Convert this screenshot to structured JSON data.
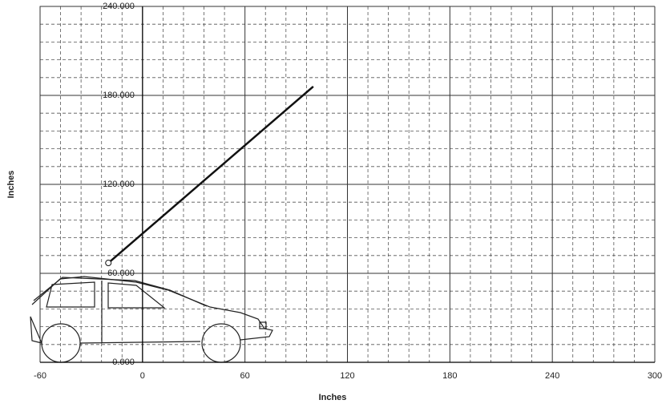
{
  "chart_data": {
    "type": "line",
    "xlabel": "Inches",
    "ylabel": "Inches",
    "x": [
      -20,
      100
    ],
    "series": [
      {
        "color": "#111111",
        "values": [
          67,
          186
        ]
      }
    ],
    "xlim": [
      -60,
      300
    ],
    "xticks": [
      -60,
      0,
      60,
      120,
      180,
      240,
      300
    ],
    "ylim": [
      0,
      240
    ],
    "yticks": [
      {
        "value": 0,
        "label": "0.000"
      },
      {
        "value": 60,
        "label": "60.000"
      },
      {
        "value": 120,
        "label": "120.000"
      },
      {
        "value": 180,
        "label": "180.000"
      },
      {
        "value": 240,
        "label": "240.000"
      }
    ],
    "grid": true
  }
}
